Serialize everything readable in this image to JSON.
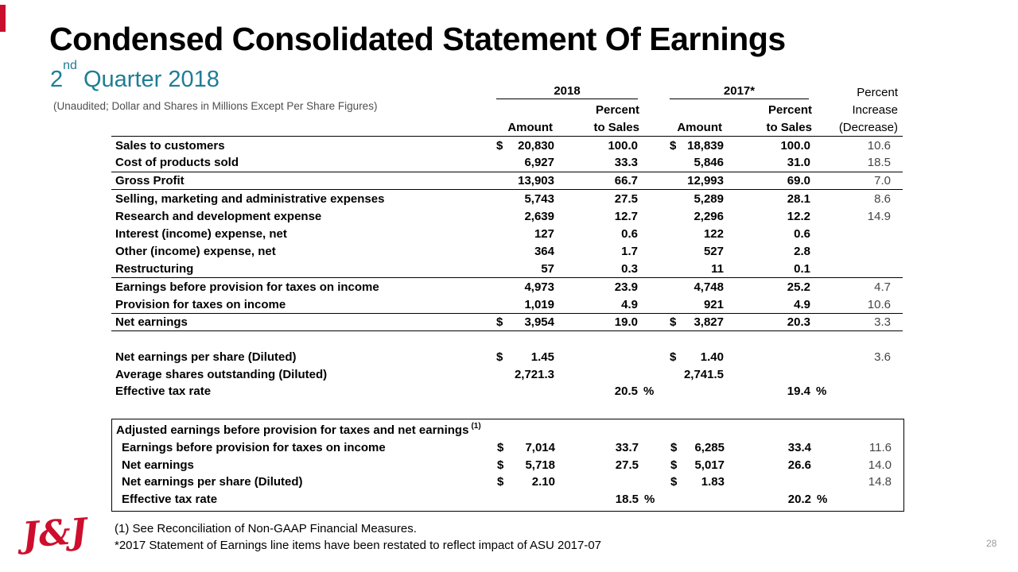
{
  "slide": {
    "title": "Condensed Consolidated Statement Of Earnings",
    "subtitle": {
      "num": "2",
      "sup": "nd",
      "rest": " Quarter 2018"
    },
    "note": "(Unaudited; Dollar and Shares in Millions Except Per Share Figures)",
    "page_number": "28",
    "logo_text": "J&J",
    "colors": {
      "accent_teal": "#1E7D95",
      "brand_red": "#CE0E2D"
    }
  },
  "header": {
    "y2018": "2018",
    "y2017": "2017*",
    "percent": "Percent",
    "amount": "Amount",
    "to_sales": "to Sales",
    "increase": "Increase",
    "decrease": "(Decrease)"
  },
  "rows": [
    {
      "label": "Sales to customers",
      "cur1": "$",
      "a1": "20,830",
      "p1": "100.0",
      "cur2": "$",
      "a2": "18,839",
      "p2": "100.0",
      "chg": "10.6"
    },
    {
      "label": "Cost of products sold",
      "cur1": "",
      "a1": "6,927",
      "p1": "33.3",
      "cur2": "",
      "a2": "5,846",
      "p2": "31.0",
      "chg": "18.5"
    },
    {
      "label": "Gross Profit",
      "cur1": "",
      "a1": "13,903",
      "p1": "66.7",
      "cur2": "",
      "a2": "12,993",
      "p2": "69.0",
      "chg": "7.0"
    },
    {
      "label": "Selling, marketing and administrative expenses",
      "cur1": "",
      "a1": "5,743",
      "p1": "27.5",
      "cur2": "",
      "a2": "5,289",
      "p2": "28.1",
      "chg": "8.6"
    },
    {
      "label": "Research and development expense",
      "cur1": "",
      "a1": "2,639",
      "p1": "12.7",
      "cur2": "",
      "a2": "2,296",
      "p2": "12.2",
      "chg": "14.9"
    },
    {
      "label": "Interest (income) expense, net",
      "cur1": "",
      "a1": "127",
      "p1": "0.6",
      "cur2": "",
      "a2": "122",
      "p2": "0.6",
      "chg": ""
    },
    {
      "label": "Other (income) expense, net",
      "cur1": "",
      "a1": "364",
      "p1": "1.7",
      "cur2": "",
      "a2": "527",
      "p2": "2.8",
      "chg": ""
    },
    {
      "label": "Restructuring",
      "cur1": "",
      "a1": "57",
      "p1": "0.3",
      "cur2": "",
      "a2": "11",
      "p2": "0.1",
      "chg": ""
    },
    {
      "label": "Earnings before provision for taxes on income",
      "cur1": "",
      "a1": "4,973",
      "p1": "23.9",
      "cur2": "",
      "a2": "4,748",
      "p2": "25.2",
      "chg": "4.7"
    },
    {
      "label": "Provision for taxes on income",
      "cur1": "",
      "a1": "1,019",
      "p1": "4.9",
      "cur2": "",
      "a2": "921",
      "p2": "4.9",
      "chg": "10.6"
    },
    {
      "label": "Net earnings",
      "cur1": "$",
      "a1": "3,954",
      "p1": "19.0",
      "cur2": "$",
      "a2": "3,827",
      "p2": "20.3",
      "chg": "3.3"
    }
  ],
  "per_share": [
    {
      "label": "Net earnings per share (Diluted)",
      "cur1": "$",
      "a1": "1.45",
      "p1": "",
      "cur2": "$",
      "a2": "1.40",
      "p2": "",
      "chg": "3.6"
    },
    {
      "label": "Average shares outstanding (Diluted)",
      "cur1": "",
      "a1": "2,721.3",
      "p1": "",
      "cur2": "",
      "a2": "2,741.5",
      "p2": "",
      "chg": ""
    },
    {
      "label": "Effective tax rate",
      "cur1": "",
      "a1": "",
      "p1": "20.5",
      "p1sfx": "%",
      "cur2": "",
      "a2": "",
      "p2": "19.4",
      "p2sfx": "%",
      "chg": ""
    }
  ],
  "adjusted": {
    "heading": "Adjusted earnings before provision for taxes and net earnings",
    "heading_sup": "(1)",
    "rows": [
      {
        "label": "Earnings before provision for taxes on income",
        "cur1": "$",
        "a1": "7,014",
        "p1": "33.7",
        "cur2": "$",
        "a2": "6,285",
        "p2": "33.4",
        "chg": "11.6"
      },
      {
        "label": "Net earnings",
        "cur1": "$",
        "a1": "5,718",
        "p1": "27.5",
        "cur2": "$",
        "a2": "5,017",
        "p2": "26.6",
        "chg": "14.0"
      },
      {
        "label": "Net earnings per share (Diluted)",
        "cur1": "$",
        "a1": "2.10",
        "p1": "",
        "cur2": "$",
        "a2": "1.83",
        "p2": "",
        "chg": "14.8"
      },
      {
        "label": "Effective tax rate",
        "cur1": "",
        "a1": "",
        "p1": "18.5",
        "p1sfx": "%",
        "cur2": "",
        "a2": "",
        "p2": "20.2",
        "p2sfx": "%",
        "chg": ""
      }
    ]
  },
  "footnotes": {
    "line1": "(1) See Reconciliation of Non-GAAP Financial Measures.",
    "line2": "*2017 Statement of Earnings line items have been restated to reflect impact of ASU 2017-07"
  }
}
